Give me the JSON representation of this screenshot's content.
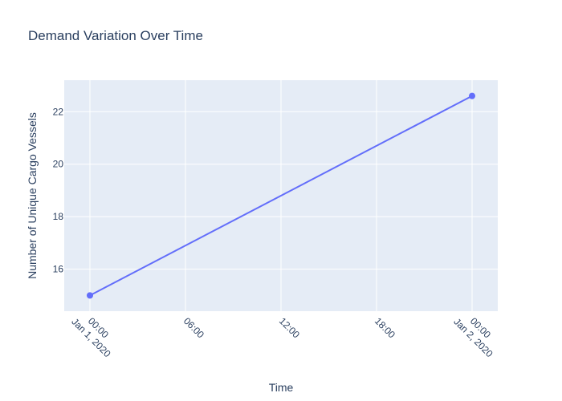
{
  "chart_data": {
    "type": "line",
    "title": "Demand Variation Over Time",
    "xlabel": "Time",
    "ylabel": "Number of Unique Cargo Vessels",
    "x": [
      "2020-01-01 00:00",
      "2020-01-02 00:00"
    ],
    "y": [
      15,
      22.6
    ],
    "xlim": [
      "2020-01-01 00:00",
      "2020-01-02 00:00"
    ],
    "ylim": [
      14.4,
      23.2
    ],
    "x_ticks": [
      {
        "value": "2020-01-01 00:00",
        "line1": "00:00",
        "line2": "Jan 1, 2020"
      },
      {
        "value": "2020-01-01 06:00",
        "line1": "06:00",
        "line2": ""
      },
      {
        "value": "2020-01-01 12:00",
        "line1": "12:00",
        "line2": ""
      },
      {
        "value": "2020-01-01 18:00",
        "line1": "18:00",
        "line2": ""
      },
      {
        "value": "2020-01-02 00:00",
        "line1": "00:00",
        "line2": "Jan 2, 2020"
      }
    ],
    "y_ticks": [
      16,
      18,
      20,
      22
    ],
    "grid": true,
    "colors": {
      "line": "#636efa",
      "plot_bg": "#e5ecf6",
      "text": "#2a3f5f"
    }
  }
}
